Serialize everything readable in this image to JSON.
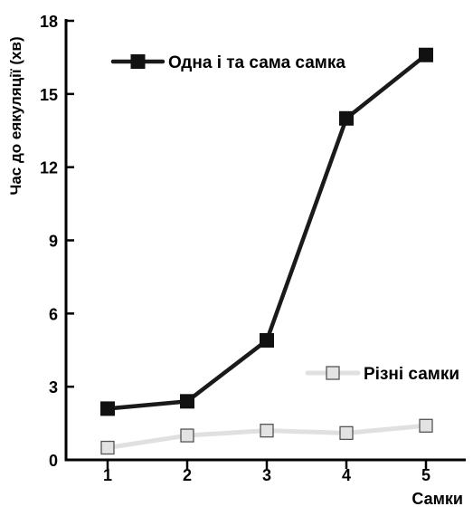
{
  "chart_data": {
    "type": "line",
    "title": "",
    "xlabel": "Самки",
    "ylabel": "Час до еякуляції (хв)",
    "categories": [
      "1",
      "2",
      "3",
      "4",
      "5"
    ],
    "ylim": [
      0,
      18
    ],
    "yticks": [
      "0",
      "3",
      "6",
      "9",
      "12",
      "15",
      "18"
    ],
    "grid": false,
    "series": [
      {
        "name": "Одна і та сама самка",
        "values": [
          2.1,
          2.4,
          4.9,
          14.0,
          16.6
        ],
        "color": "#1a1a1a",
        "marker": "filled-square"
      },
      {
        "name": "Різні самки",
        "values": [
          0.5,
          1.0,
          1.2,
          1.1,
          1.4
        ],
        "color": "#e0e0e0",
        "marker": "hollow-square"
      }
    ]
  }
}
